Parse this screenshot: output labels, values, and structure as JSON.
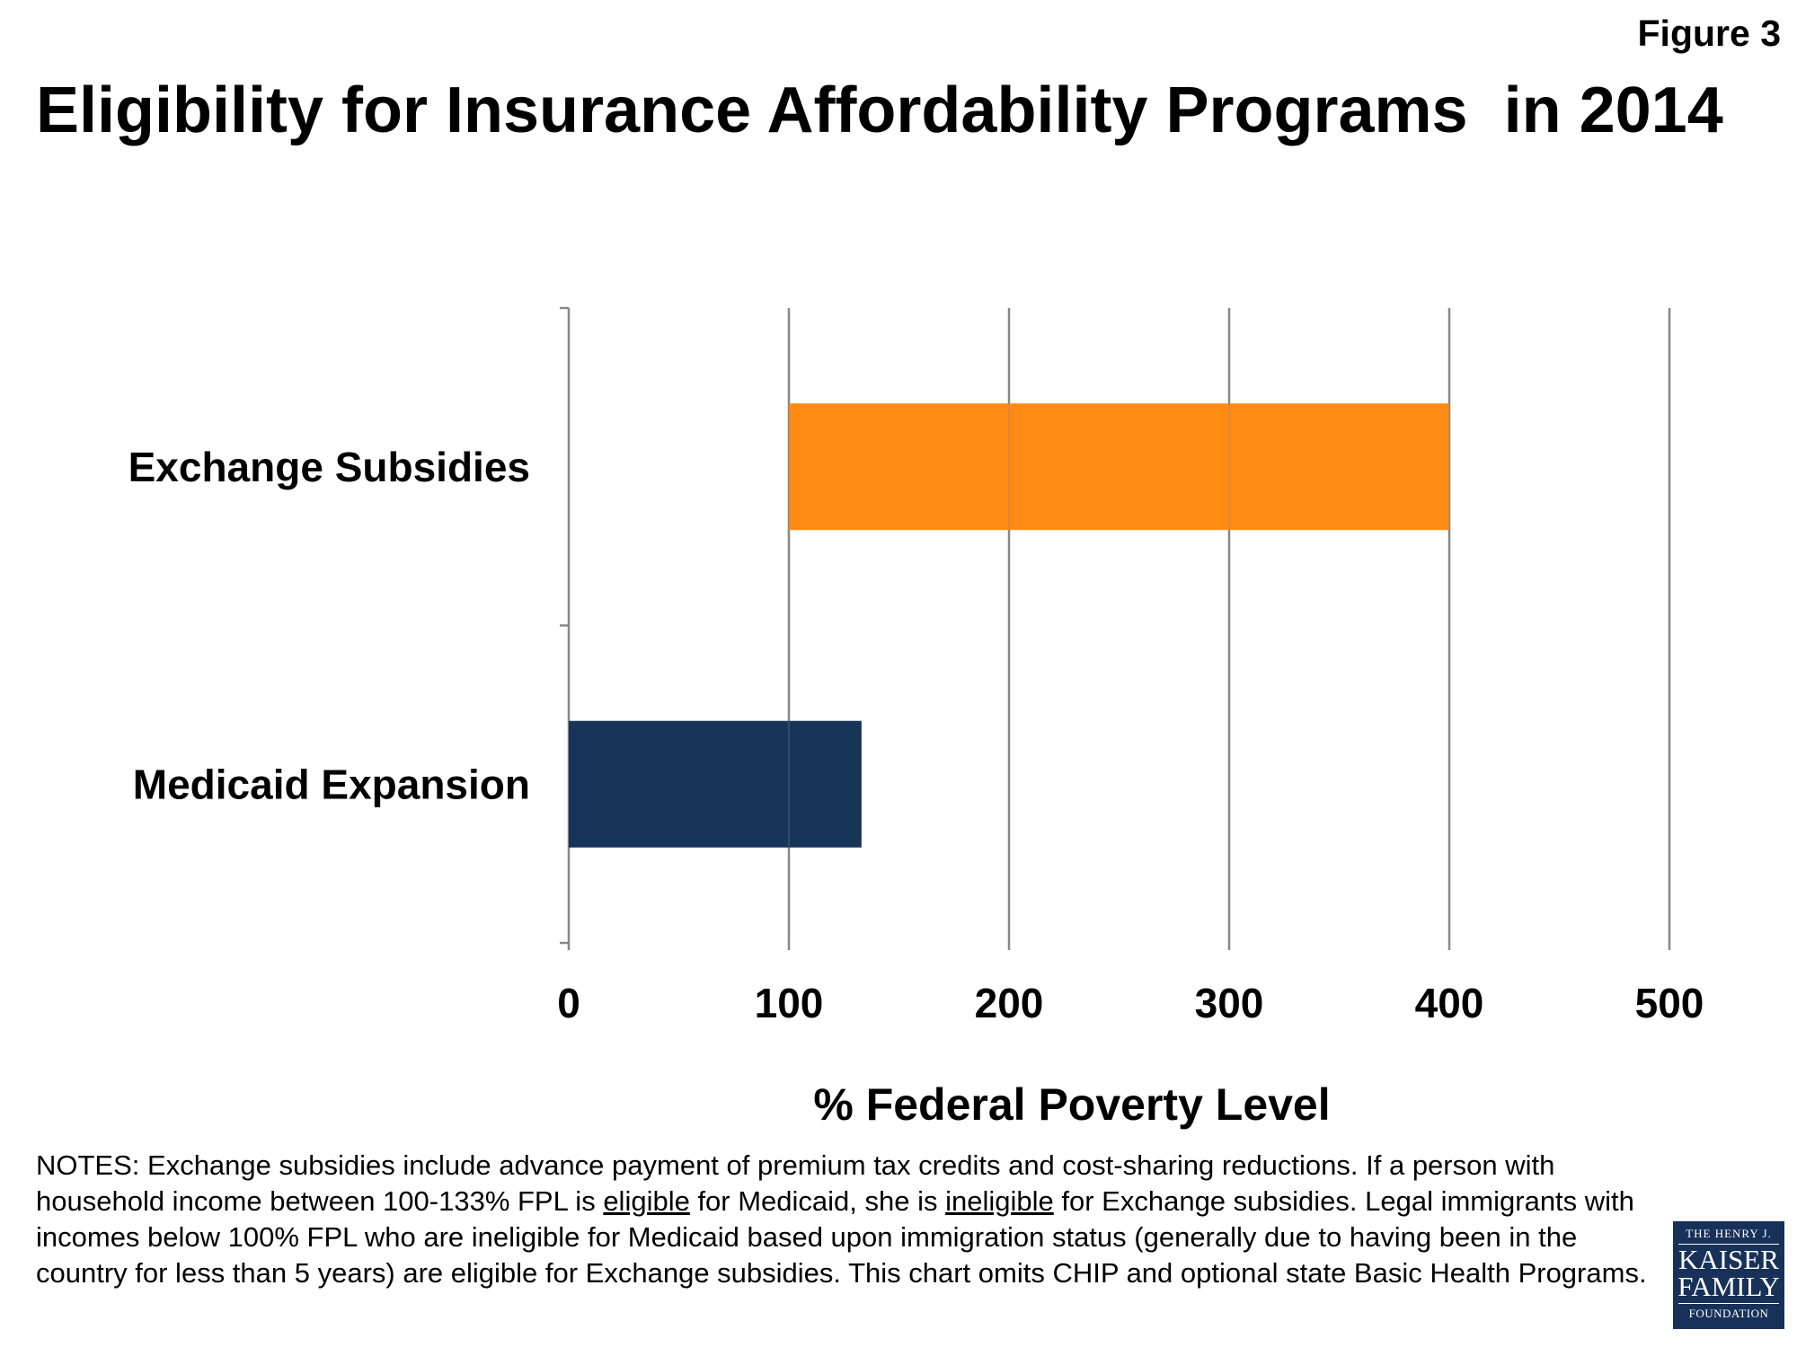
{
  "figure_label": "Figure 3",
  "chart_data": {
    "type": "bar",
    "orientation": "horizontal",
    "title": "Eligibility for Insurance Affordability Programs  in 2014",
    "xlabel": "% Federal Poverty Level",
    "ylabel": "",
    "xlim": [
      0,
      500
    ],
    "xticks": [
      "0",
      "100",
      "200",
      "300",
      "400",
      "500"
    ],
    "grid": true,
    "categories": [
      "Exchange Subsidies",
      "Medicaid Expansion"
    ],
    "series": [
      {
        "name": "Exchange Subsidies",
        "start": 100,
        "end": 400,
        "color": "#FF8A14"
      },
      {
        "name": "Medicaid Expansion",
        "start": 0,
        "end": 133,
        "color": "#163559"
      }
    ]
  },
  "notes": {
    "p1": "NOTES:  Exchange subsidies include advance payment of premium tax credits and cost-sharing reductions.  If a person with household income between 100-133% FPL is ",
    "u1": "eligible",
    "p2": " for Medicaid, she is ",
    "u2": "ineligible",
    "p3": " for Exchange subsidies.  Legal immigrants with incomes below 100% FPL who are ineligible for Medicaid based upon immigration status  (generally due to having been in the country for less than 5 years) are eligible for Exchange subsidies.  This chart omits CHIP and optional state Basic Health Programs."
  },
  "logo": {
    "line1": "THE HENRY J.",
    "line2": "KAISER",
    "line3": "FAMILY",
    "line4": "FOUNDATION"
  }
}
